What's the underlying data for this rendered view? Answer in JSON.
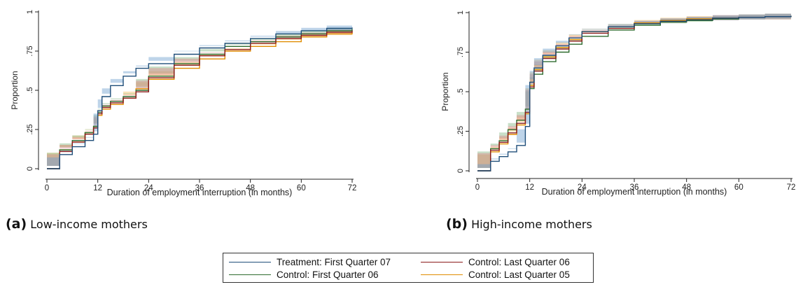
{
  "chart_data": [
    {
      "type": "line",
      "id": "a",
      "xlabel": "Duration of employment interruption (in months)",
      "ylabel": "Proportion",
      "xlim": [
        0,
        72
      ],
      "ylim": [
        0,
        1
      ],
      "xticks": [
        0,
        12,
        24,
        36,
        48,
        60,
        72
      ],
      "xtick_labels": [
        "0",
        "12",
        "24",
        "36",
        "48",
        "60",
        "72"
      ],
      "yticks": [
        0,
        0.25,
        0.5,
        0.75,
        1
      ],
      "ytick_labels": [
        "0",
        ".25",
        ".5",
        ".75",
        "1"
      ],
      "grid": false,
      "legend": "bottom (shared)",
      "step": true,
      "series": [
        {
          "name": "Treatment: First Quarter 07",
          "x": [
            0,
            3,
            6,
            9,
            11,
            12,
            13,
            15,
            18,
            21,
            24,
            30,
            36,
            42,
            48,
            54,
            60,
            66,
            72
          ],
          "values": [
            0,
            0.09,
            0.14,
            0.18,
            0.22,
            0.37,
            0.46,
            0.53,
            0.59,
            0.64,
            0.67,
            0.73,
            0.77,
            0.8,
            0.83,
            0.86,
            0.88,
            0.895,
            0.9
          ]
        },
        {
          "name": "Control: Last Quarter 06",
          "x": [
            0,
            3,
            6,
            9,
            11,
            12,
            13,
            15,
            18,
            21,
            24,
            30,
            36,
            42,
            48,
            54,
            60,
            66,
            72
          ],
          "values": [
            0,
            0.11,
            0.17,
            0.22,
            0.26,
            0.35,
            0.39,
            0.42,
            0.45,
            0.49,
            0.58,
            0.66,
            0.72,
            0.76,
            0.8,
            0.83,
            0.85,
            0.87,
            0.88
          ]
        },
        {
          "name": "Control: First Quarter 06",
          "x": [
            0,
            3,
            6,
            9,
            11,
            12,
            13,
            15,
            18,
            21,
            24,
            30,
            36,
            42,
            48,
            54,
            60,
            66,
            72
          ],
          "values": [
            0,
            0.12,
            0.18,
            0.23,
            0.27,
            0.36,
            0.4,
            0.43,
            0.46,
            0.5,
            0.59,
            0.67,
            0.73,
            0.78,
            0.81,
            0.84,
            0.86,
            0.88,
            0.89
          ]
        },
        {
          "name": "Control: Last Quarter 05",
          "x": [
            0,
            3,
            6,
            9,
            11,
            12,
            13,
            15,
            18,
            21,
            24,
            30,
            36,
            42,
            48,
            54,
            60,
            66,
            72
          ],
          "values": [
            0,
            0.12,
            0.17,
            0.23,
            0.27,
            0.34,
            0.38,
            0.41,
            0.45,
            0.51,
            0.57,
            0.64,
            0.7,
            0.75,
            0.78,
            0.81,
            0.84,
            0.86,
            0.87
          ]
        }
      ]
    },
    {
      "type": "line",
      "id": "b",
      "xlabel": "Duration of employment interruption (in months)",
      "ylabel": "Proportion",
      "xlim": [
        0,
        72
      ],
      "ylim": [
        0,
        1
      ],
      "xticks": [
        0,
        12,
        24,
        36,
        48,
        60,
        72
      ],
      "xtick_labels": [
        "0",
        "12",
        "24",
        "36",
        "48",
        "60",
        "72"
      ],
      "yticks": [
        0,
        0.25,
        0.5,
        0.75,
        1
      ],
      "ytick_labels": [
        "0",
        ".25",
        ".5",
        ".75",
        "1"
      ],
      "grid": false,
      "legend": "bottom (shared)",
      "step": true,
      "series": [
        {
          "name": "Treatment: First Quarter 07",
          "x": [
            0,
            3,
            5,
            7,
            9,
            11,
            12,
            13,
            15,
            18,
            21,
            24,
            30,
            36,
            42,
            48,
            54,
            60,
            66,
            72
          ],
          "values": [
            0,
            0.06,
            0.09,
            0.12,
            0.16,
            0.28,
            0.56,
            0.65,
            0.73,
            0.79,
            0.84,
            0.88,
            0.91,
            0.93,
            0.945,
            0.955,
            0.965,
            0.97,
            0.975,
            0.98
          ]
        },
        {
          "name": "Control: Last Quarter 06",
          "x": [
            0,
            3,
            5,
            7,
            9,
            11,
            12,
            13,
            15,
            18,
            21,
            24,
            30,
            36,
            42,
            48,
            54,
            60,
            66,
            72
          ],
          "values": [
            0,
            0.13,
            0.18,
            0.24,
            0.3,
            0.37,
            0.53,
            0.63,
            0.71,
            0.77,
            0.82,
            0.87,
            0.9,
            0.93,
            0.945,
            0.955,
            0.965,
            0.97,
            0.975,
            0.975
          ]
        },
        {
          "name": "Control: First Quarter 06",
          "x": [
            0,
            3,
            5,
            7,
            9,
            11,
            12,
            13,
            15,
            18,
            21,
            24,
            30,
            36,
            42,
            48,
            54,
            60,
            66,
            72
          ],
          "values": [
            0,
            0.14,
            0.19,
            0.26,
            0.32,
            0.39,
            0.52,
            0.61,
            0.69,
            0.75,
            0.8,
            0.85,
            0.89,
            0.92,
            0.94,
            0.95,
            0.96,
            0.97,
            0.975,
            0.975
          ]
        },
        {
          "name": "Control: Last Quarter 05",
          "x": [
            0,
            3,
            5,
            7,
            9,
            11,
            12,
            13,
            15,
            18,
            21,
            24,
            30,
            36,
            42,
            48,
            54,
            60,
            66,
            72
          ],
          "values": [
            0,
            0.12,
            0.17,
            0.23,
            0.29,
            0.36,
            0.54,
            0.64,
            0.72,
            0.78,
            0.83,
            0.88,
            0.91,
            0.935,
            0.95,
            0.96,
            0.965,
            0.97,
            0.975,
            0.98
          ]
        }
      ]
    }
  ],
  "captions": {
    "a": {
      "tag": "(a)",
      "text": "Low-income mothers"
    },
    "b": {
      "tag": "(b)",
      "text": "High-income mothers"
    }
  },
  "legend": {
    "items": [
      {
        "label": "Treatment: First Quarter 07",
        "color": "#1f4e79"
      },
      {
        "label": "Control: Last Quarter 06",
        "color": "#8b1a1a"
      },
      {
        "label": "Control: First Quarter 06",
        "color": "#2e6b2e"
      },
      {
        "label": "Control: Last Quarter 05",
        "color": "#e08c00"
      }
    ]
  },
  "colors": {
    "series": [
      "#1f4e79",
      "#8b1a1a",
      "#2e6b2e",
      "#e08c00"
    ],
    "bands": [
      "#6f9fcf",
      "#d98a8a",
      "#86b986",
      "#f4be62"
    ]
  }
}
